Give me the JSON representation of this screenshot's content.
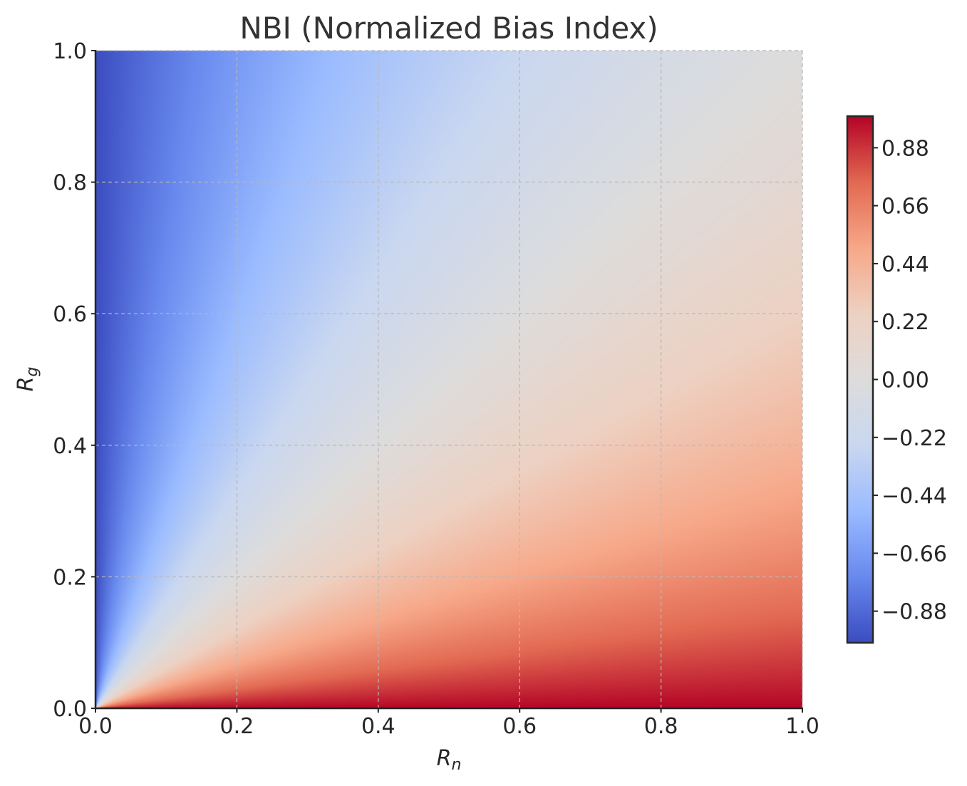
{
  "chart_data": {
    "type": "heatmap",
    "title": "NBI (Normalized Bias Index)",
    "xlabel": "R",
    "xlabel_sub": "n",
    "ylabel": "R",
    "ylabel_sub": "g",
    "xlim": [
      0.0,
      1.0
    ],
    "ylim": [
      0.0,
      1.0
    ],
    "x_ticks": [
      0.0,
      0.2,
      0.4,
      0.6,
      0.8,
      1.0
    ],
    "y_ticks": [
      0.0,
      0.2,
      0.4,
      0.6,
      0.8,
      1.0
    ],
    "x_tick_labels": [
      "0.0",
      "0.2",
      "0.4",
      "0.6",
      "0.8",
      "1.0"
    ],
    "y_tick_labels": [
      "0.0",
      "0.2",
      "0.4",
      "0.6",
      "0.8",
      "1.0"
    ],
    "function": "(R_n - R_g) / (R_n + R_g)",
    "colormap": "coolwarm",
    "colormap_stops": [
      "#3b4cc0",
      "#6889ee",
      "#9abbff",
      "#c9d7f0",
      "#dddcdc",
      "#edd1c2",
      "#f7a889",
      "#e26952",
      "#b40426"
    ],
    "grid": true,
    "colorbar": {
      "range": [
        -1.0,
        1.0
      ],
      "ticks": [
        0.88,
        0.66,
        0.44,
        0.22,
        0.0,
        -0.22,
        -0.44,
        -0.66,
        -0.88
      ],
      "tick_labels": [
        "0.88",
        "0.66",
        "0.44",
        "0.22",
        "0.00",
        "−0.22",
        "−0.44",
        "−0.66",
        "−0.88"
      ]
    }
  }
}
